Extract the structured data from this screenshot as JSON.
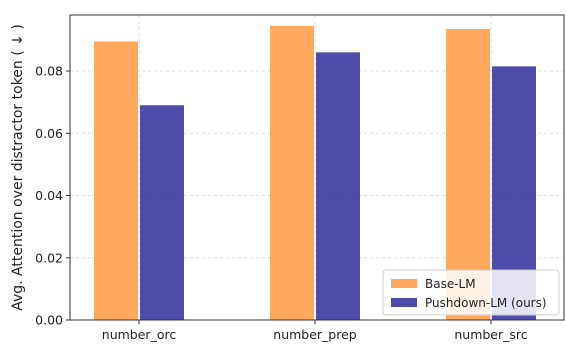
{
  "chart_data": {
    "type": "bar",
    "title": "",
    "xlabel": "",
    "ylabel": "Avg. Attention over distractor token ( ↓ )",
    "categories": [
      "number_orc",
      "number_prep",
      "number_src"
    ],
    "series": [
      {
        "name": "Base-LM",
        "color": "#FFA04D",
        "values": [
          0.0895,
          0.0945,
          0.0935
        ]
      },
      {
        "name": "Pushdown-LM (ours)",
        "color": "#3B37A0",
        "values": [
          0.069,
          0.086,
          0.0815
        ]
      }
    ],
    "ylim": [
      0,
      0.098
    ],
    "yticks": [
      0.0,
      0.02,
      0.04,
      0.06,
      0.08
    ],
    "ytick_labels": [
      "0.00",
      "0.02",
      "0.04",
      "0.06",
      "0.08"
    ],
    "grid": true,
    "legend_position": "bottom-right"
  }
}
